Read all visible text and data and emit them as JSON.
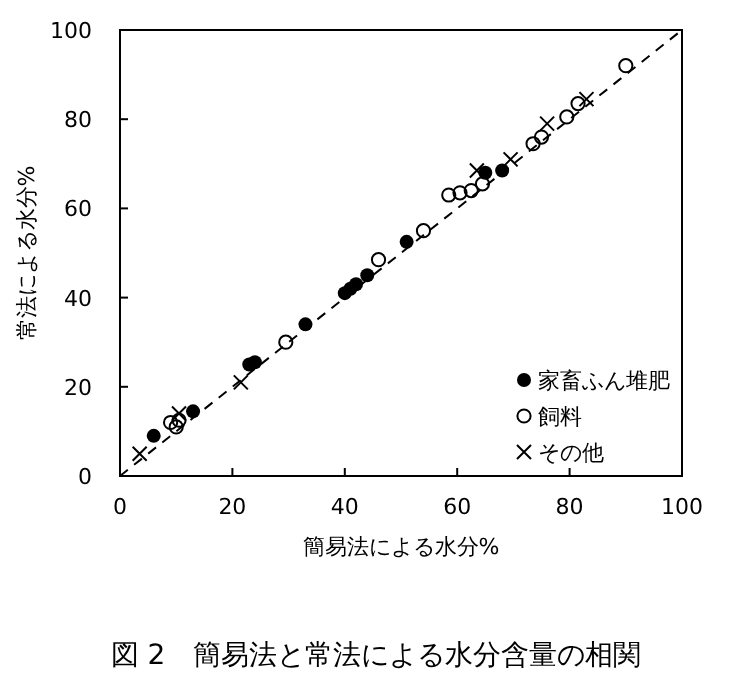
{
  "chart_data": {
    "type": "scatter",
    "title": "図 2　簡易法と常法による水分含量の相関",
    "xlabel": "簡易法による水分%",
    "ylabel": "常法による水分%",
    "xlim": [
      0,
      100
    ],
    "ylim": [
      0,
      100
    ],
    "xticks": [
      0,
      20,
      40,
      60,
      80,
      100
    ],
    "yticks": [
      0,
      20,
      40,
      60,
      80,
      100
    ],
    "grid": false,
    "legend": "bottom right",
    "series": [
      {
        "type": "line",
        "line_style": "dashed",
        "marker": "none",
        "color": "#000000",
        "x": [
          0,
          100
        ],
        "values": [
          0,
          100
        ]
      },
      {
        "name": "家畜ふん堆肥",
        "marker": "circle",
        "color": "#000000",
        "x": [
          6,
          13,
          23,
          24,
          33,
          40,
          41,
          42,
          44,
          51,
          65,
          68
        ],
        "values": [
          9,
          14.5,
          25,
          25.5,
          34,
          41,
          42,
          43,
          45,
          52.5,
          68,
          68.5
        ]
      },
      {
        "name": "飼料",
        "marker": "circle_open",
        "color": "#000000",
        "x": [
          9,
          10,
          10.5,
          29.5,
          46,
          54,
          58.5,
          60.5,
          62.5,
          64.5,
          73.5,
          75,
          79.5,
          81.5,
          90
        ],
        "values": [
          12,
          11,
          12.5,
          30,
          48.5,
          55,
          63,
          63.5,
          64,
          65.5,
          74.5,
          76,
          80.5,
          83.5,
          92
        ]
      },
      {
        "name": "その他",
        "marker": "cross",
        "color": "#000000",
        "x": [
          3.5,
          10.5,
          21.5,
          63.5,
          69.5,
          76,
          83
        ],
        "values": [
          5,
          14,
          21,
          68.5,
          71,
          79,
          84.5
        ]
      }
    ]
  }
}
